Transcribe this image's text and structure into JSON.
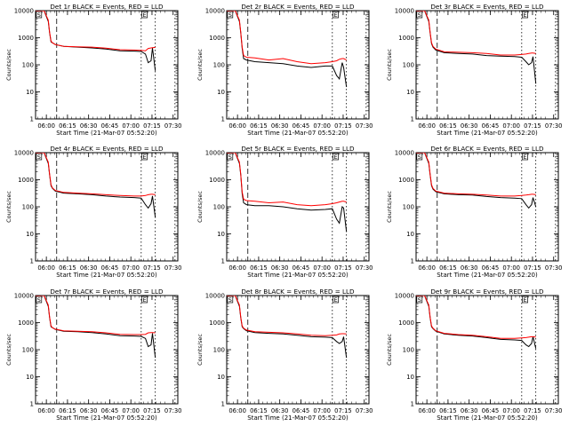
{
  "x_axis_title": "Start Time (21-Mar-07 05:52:20)",
  "y_axis_title": "Counts/sec",
  "x_ticks": [
    "06:00",
    "06:15",
    "06:30",
    "06:45",
    "07:00",
    "07:15",
    "07:30"
  ],
  "y_ticks": [
    "1",
    "10",
    "100",
    "1000",
    "10000"
  ],
  "marker_labels": [
    "S",
    "E"
  ],
  "colors": {
    "events": "#000000",
    "lld": "#ff0000",
    "frame": "#000000"
  },
  "chart_data": [
    {
      "type": "line",
      "title": "Det 1r BLACK = Events, RED = LLD",
      "x_axis_title": "Start Time (21-Mar-07 05:52:20)",
      "y_axis_title": "Counts/sec",
      "x_minutes_since_0552": [
        0,
        3,
        6,
        9,
        10,
        11,
        12,
        14,
        20,
        30,
        40,
        50,
        60,
        70,
        75,
        78,
        80,
        82,
        83,
        85
      ],
      "series": [
        {
          "name": "Events",
          "values": [
            10000,
            10000,
            10000,
            4000,
            1500,
            700,
            650,
            560,
            480,
            450,
            420,
            380,
            330,
            320,
            310,
            250,
            120,
            140,
            420,
            60
          ]
        },
        {
          "name": "LLD",
          "values": [
            10000,
            10000,
            10000,
            4500,
            1600,
            750,
            650,
            560,
            480,
            460,
            450,
            410,
            360,
            350,
            340,
            330,
            400,
            420,
            430,
            440
          ]
        }
      ],
      "ylim": [
        1,
        10000
      ],
      "scale": "log"
    },
    {
      "type": "line",
      "title": "Det 2r BLACK = Events, RED = LLD",
      "x_axis_title": "Start Time (21-Mar-07 05:52:20)",
      "y_axis_title": "Counts/sec",
      "x_minutes_since_0552": [
        0,
        3,
        6,
        9,
        10,
        11,
        12,
        14,
        20,
        30,
        40,
        50,
        60,
        70,
        75,
        78,
        80,
        82,
        83,
        85
      ],
      "series": [
        {
          "name": "Events",
          "values": [
            10000,
            10000,
            10000,
            4000,
            1500,
            400,
            170,
            150,
            130,
            120,
            110,
            90,
            80,
            90,
            90,
            40,
            30,
            120,
            80,
            15
          ]
        },
        {
          "name": "LLD",
          "values": [
            10000,
            10000,
            10000,
            4500,
            1600,
            450,
            220,
            190,
            180,
            150,
            170,
            130,
            110,
            120,
            130,
            140,
            160,
            170,
            170,
            150
          ]
        }
      ],
      "ylim": [
        1,
        10000
      ],
      "scale": "log"
    },
    {
      "type": "line",
      "title": "Det 3r BLACK = Events, RED = LLD",
      "x_axis_title": "Start Time (21-Mar-07 05:52:20)",
      "y_axis_title": "Counts/sec",
      "x_minutes_since_0552": [
        0,
        3,
        6,
        9,
        10,
        11,
        12,
        14,
        20,
        30,
        40,
        50,
        60,
        70,
        75,
        78,
        80,
        82,
        83,
        85
      ],
      "series": [
        {
          "name": "Events",
          "values": [
            10000,
            10000,
            10000,
            4000,
            1500,
            600,
            450,
            350,
            280,
            260,
            250,
            220,
            210,
            200,
            190,
            130,
            100,
            120,
            200,
            20
          ]
        },
        {
          "name": "LLD",
          "values": [
            10000,
            10000,
            10000,
            4500,
            1600,
            650,
            480,
            380,
            300,
            290,
            280,
            260,
            230,
            230,
            240,
            250,
            260,
            270,
            270,
            260
          ]
        }
      ],
      "ylim": [
        1,
        10000
      ],
      "scale": "log"
    },
    {
      "type": "line",
      "title": "Det 4r BLACK = Events, RED = LLD",
      "x_axis_title": "Start Time (21-Mar-07 05:52:20)",
      "y_axis_title": "Counts/sec",
      "x_minutes_since_0552": [
        0,
        3,
        6,
        9,
        10,
        11,
        12,
        14,
        20,
        30,
        40,
        50,
        60,
        70,
        75,
        78,
        80,
        82,
        83,
        85
      ],
      "series": [
        {
          "name": "Events",
          "values": [
            10000,
            10000,
            10000,
            4000,
            1500,
            600,
            480,
            380,
            320,
            300,
            280,
            250,
            230,
            220,
            210,
            120,
            90,
            130,
            250,
            40
          ]
        },
        {
          "name": "LLD",
          "values": [
            10000,
            10000,
            10000,
            4500,
            1600,
            650,
            500,
            400,
            340,
            320,
            300,
            280,
            260,
            250,
            250,
            260,
            280,
            290,
            290,
            280
          ]
        }
      ],
      "ylim": [
        1,
        10000
      ],
      "scale": "log"
    },
    {
      "type": "line",
      "title": "Det 5r BLACK = Events, RED = LLD",
      "x_axis_title": "Start Time (21-Mar-07 05:52:20)",
      "y_axis_title": "Counts/sec",
      "x_minutes_since_0552": [
        0,
        3,
        6,
        9,
        10,
        11,
        12,
        14,
        20,
        30,
        40,
        50,
        60,
        70,
        75,
        78,
        80,
        82,
        83,
        85
      ],
      "series": [
        {
          "name": "Events",
          "values": [
            10000,
            10000,
            10000,
            4000,
            1500,
            300,
            140,
            120,
            110,
            110,
            100,
            85,
            75,
            80,
            85,
            35,
            25,
            100,
            90,
            12
          ]
        },
        {
          "name": "LLD",
          "values": [
            10000,
            10000,
            10000,
            4500,
            1600,
            350,
            190,
            170,
            160,
            140,
            150,
            120,
            110,
            120,
            130,
            140,
            150,
            160,
            160,
            150
          ]
        }
      ],
      "ylim": [
        1,
        10000
      ],
      "scale": "log"
    },
    {
      "type": "line",
      "title": "Det 6r BLACK = Events, RED = LLD",
      "x_axis_title": "Start Time (21-Mar-07 05:52:20)",
      "y_axis_title": "Counts/sec",
      "x_minutes_since_0552": [
        0,
        3,
        6,
        9,
        10,
        11,
        12,
        14,
        20,
        30,
        40,
        50,
        60,
        70,
        75,
        78,
        80,
        82,
        83,
        85
      ],
      "series": [
        {
          "name": "Events",
          "values": [
            10000,
            10000,
            10000,
            4000,
            1500,
            600,
            450,
            360,
            300,
            280,
            270,
            240,
            220,
            210,
            200,
            120,
            90,
            120,
            220,
            100
          ]
        },
        {
          "name": "LLD",
          "values": [
            10000,
            10000,
            10000,
            4500,
            1600,
            650,
            480,
            380,
            320,
            300,
            290,
            270,
            250,
            250,
            260,
            270,
            280,
            290,
            290,
            280
          ]
        }
      ],
      "ylim": [
        1,
        10000
      ],
      "scale": "log"
    },
    {
      "type": "line",
      "title": "Det 7r BLACK = Events, RED = LLD",
      "x_axis_title": "Start Time (21-Mar-07 05:52:20)",
      "y_axis_title": "Counts/sec",
      "x_minutes_since_0552": [
        0,
        3,
        6,
        9,
        10,
        11,
        12,
        14,
        20,
        30,
        40,
        50,
        60,
        70,
        75,
        78,
        80,
        82,
        83,
        85
      ],
      "series": [
        {
          "name": "Events",
          "values": [
            10000,
            10000,
            10000,
            4000,
            1500,
            700,
            650,
            560,
            480,
            460,
            430,
            380,
            330,
            320,
            310,
            260,
            130,
            150,
            400,
            50
          ]
        },
        {
          "name": "LLD",
          "values": [
            10000,
            10000,
            10000,
            4500,
            1600,
            750,
            650,
            570,
            500,
            480,
            460,
            420,
            370,
            360,
            360,
            370,
            420,
            430,
            430,
            420
          ]
        }
      ],
      "ylim": [
        1,
        10000
      ],
      "scale": "log"
    },
    {
      "type": "line",
      "title": "Det 8r BLACK = Events, RED = LLD",
      "x_axis_title": "Start Time (21-Mar-07 05:52:20)",
      "y_axis_title": "Counts/sec",
      "x_minutes_since_0552": [
        0,
        3,
        6,
        9,
        10,
        11,
        12,
        14,
        20,
        30,
        40,
        50,
        60,
        70,
        75,
        78,
        80,
        82,
        83,
        85
      ],
      "series": [
        {
          "name": "Events",
          "values": [
            10000,
            10000,
            10000,
            4000,
            1500,
            700,
            600,
            500,
            430,
            400,
            380,
            340,
            300,
            290,
            280,
            200,
            170,
            200,
            300,
            50
          ]
        },
        {
          "name": "LLD",
          "values": [
            10000,
            10000,
            10000,
            4500,
            1600,
            750,
            620,
            530,
            460,
            440,
            420,
            380,
            340,
            330,
            340,
            350,
            380,
            390,
            390,
            380
          ]
        }
      ],
      "ylim": [
        1,
        10000
      ],
      "scale": "log"
    },
    {
      "type": "line",
      "title": "Det 9r BLACK = Events, RED = LLD",
      "x_axis_title": "Start Time (21-Mar-07 05:52:20)",
      "y_axis_title": "Counts/sec",
      "x_minutes_since_0552": [
        0,
        3,
        6,
        9,
        10,
        11,
        12,
        14,
        20,
        30,
        40,
        50,
        60,
        70,
        75,
        78,
        80,
        82,
        83,
        85
      ],
      "series": [
        {
          "name": "Events",
          "values": [
            10000,
            10000,
            10000,
            4000,
            1500,
            700,
            600,
            480,
            380,
            340,
            320,
            280,
            240,
            230,
            220,
            150,
            130,
            170,
            300,
            110
          ]
        },
        {
          "name": "LLD",
          "values": [
            10000,
            10000,
            10000,
            4500,
            1600,
            750,
            620,
            500,
            400,
            360,
            340,
            300,
            260,
            260,
            270,
            280,
            290,
            300,
            300,
            290
          ]
        }
      ],
      "ylim": [
        1,
        10000
      ],
      "scale": "log"
    }
  ]
}
